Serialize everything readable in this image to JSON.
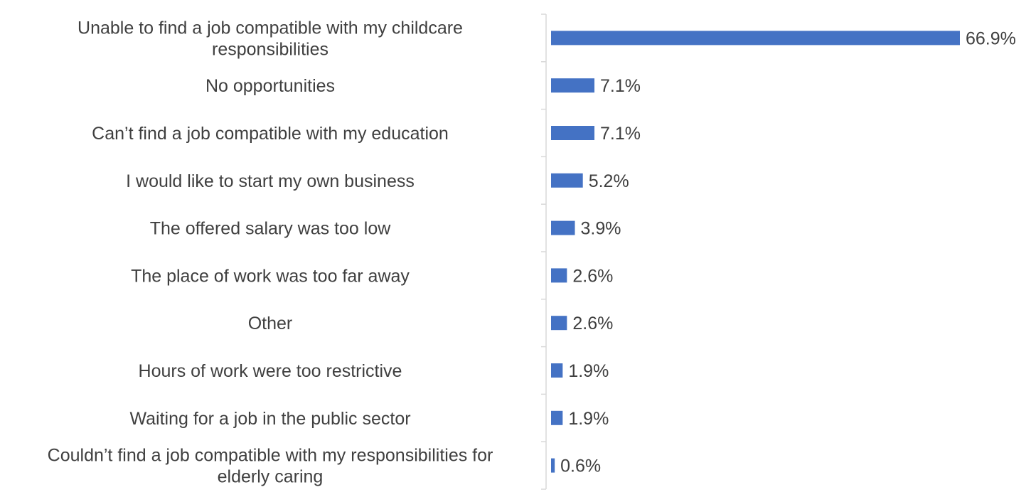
{
  "chart_data": {
    "type": "bar",
    "orientation": "horizontal",
    "categories": [
      [
        "Unable to find a job compatible with my childcare",
        "responsibilities"
      ],
      [
        "No opportunities"
      ],
      [
        "Can’t find a job compatible with my education"
      ],
      [
        "I would like to start my own business"
      ],
      [
        "The offered salary was too low"
      ],
      [
        "The place of work was too far away"
      ],
      [
        "Other"
      ],
      [
        "Hours of work were too restrictive"
      ],
      [
        "Waiting for a job in the public sector"
      ],
      [
        "Couldn’t find a job compatible with my responsibilities for",
        "elderly caring"
      ]
    ],
    "values": [
      66.9,
      7.1,
      7.1,
      5.2,
      3.9,
      2.6,
      2.6,
      1.9,
      1.9,
      0.6
    ],
    "value_labels": [
      "66.9%",
      "7.1%",
      "7.1%",
      "5.2%",
      "3.9%",
      "2.6%",
      "2.6%",
      "1.9%",
      "1.9%",
      "0.6%"
    ],
    "title": "",
    "xlabel": "",
    "ylabel": "",
    "xlim": [
      0,
      66.9
    ],
    "grid": false,
    "legend": "none",
    "bar_color": "#4472c4",
    "axis_color": "#d9d9d9"
  }
}
